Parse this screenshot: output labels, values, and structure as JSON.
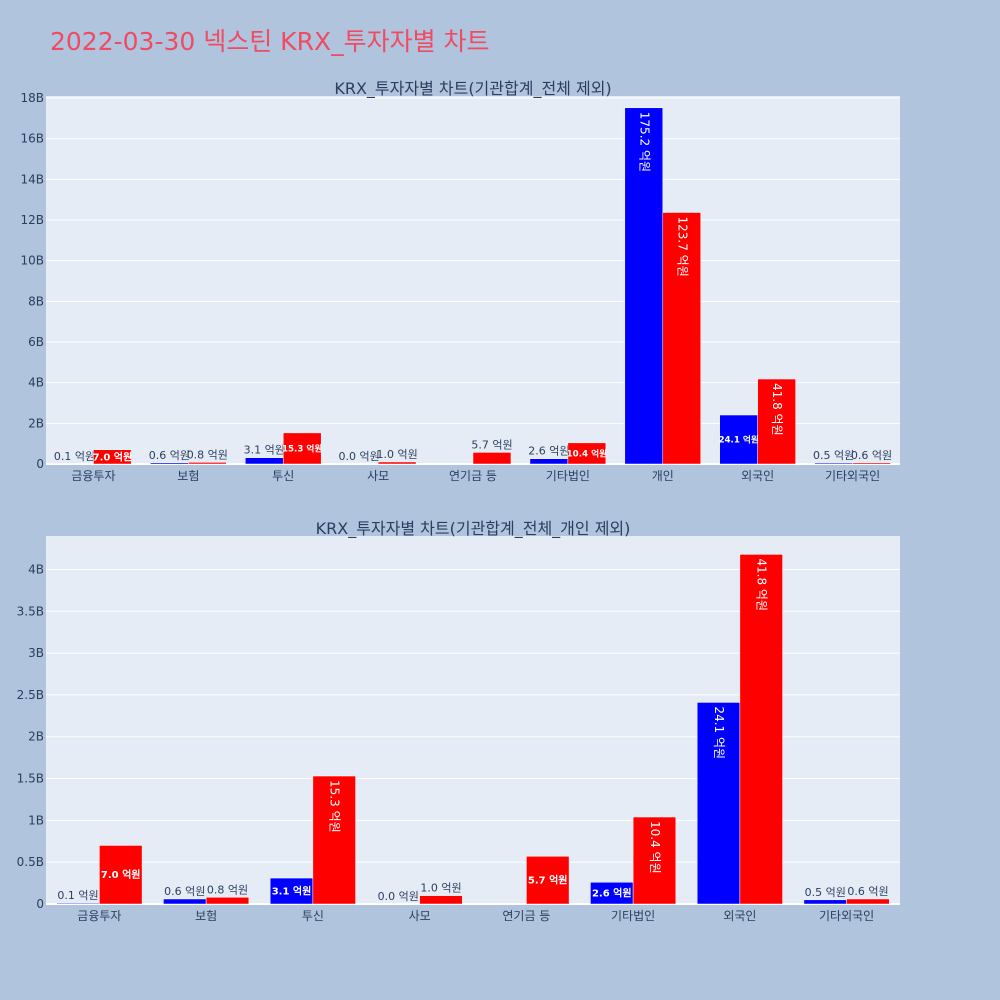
{
  "page_title": "2022-03-30 넥스틴 KRX_투자자별 차트",
  "colors": {
    "series_a": "#0000ff",
    "series_b": "#ff0000",
    "title": "#ef4b63",
    "plot_bg": "#e5ecf6",
    "page_bg": "#b0c4de"
  },
  "chart_data": [
    {
      "type": "bar",
      "title": "KRX_투자자별 차트(기관합계_전체 제외)",
      "categories": [
        "금융투자",
        "보험",
        "투신",
        "사모",
        "연기금 등",
        "기타법인",
        "개인",
        "외국인",
        "기타외국인"
      ],
      "series": [
        {
          "values": [
            10000000,
            60000000,
            310000000,
            0,
            null,
            260000000,
            17520000000,
            2410000000,
            50000000
          ],
          "labels": [
            "0.1 억원",
            "0.6 억원",
            "3.1 억원",
            "0.0 억원",
            "",
            "2.6 억원",
            "175.2 억원",
            "24.1 억원",
            "0.5 억원"
          ]
        },
        {
          "values": [
            700000000,
            80000000,
            1530000000,
            100000000,
            570000000,
            1040000000,
            12370000000,
            4180000000,
            60000000
          ],
          "labels": [
            "7.0 억원",
            "0.8 억원",
            "15.3 억원",
            "1.0 억원",
            "5.7 억원",
            "10.4 억원",
            "123.7 억원",
            "41.8 억원",
            "0.6 억원"
          ]
        }
      ],
      "yticks": [
        0,
        2000000000,
        4000000000,
        6000000000,
        8000000000,
        10000000000,
        12000000000,
        14000000000,
        16000000000,
        18000000000
      ],
      "ytick_labels": [
        "0",
        "2B",
        "4B",
        "6B",
        "8B",
        "10B",
        "12B",
        "14B",
        "16B",
        "18B"
      ],
      "ylim": [
        0,
        18100000000
      ],
      "grid": true
    },
    {
      "type": "bar",
      "title": "KRX_투자자별 차트(기관합계_전체_개인 제외)",
      "categories": [
        "금융투자",
        "보험",
        "투신",
        "사모",
        "연기금 등",
        "기타법인",
        "외국인",
        "기타외국인"
      ],
      "series": [
        {
          "values": [
            10000000,
            60000000,
            310000000,
            0,
            null,
            260000000,
            2410000000,
            50000000
          ],
          "labels": [
            "0.1 억원",
            "0.6 억원",
            "3.1 억원",
            "0.0 억원",
            "",
            "2.6 억원",
            "24.1 억원",
            "0.5 억원"
          ]
        },
        {
          "values": [
            700000000,
            80000000,
            1530000000,
            100000000,
            570000000,
            1040000000,
            4180000000,
            60000000
          ],
          "labels": [
            "7.0 억원",
            "0.8 억원",
            "15.3 억원",
            "1.0 억원",
            "5.7 억원",
            "10.4 억원",
            "41.8 억원",
            "0.6 억원"
          ]
        }
      ],
      "yticks": [
        0,
        500000000,
        1000000000,
        1500000000,
        2000000000,
        2500000000,
        3000000000,
        3500000000,
        4000000000
      ],
      "ytick_labels": [
        "0",
        "0.5B",
        "1B",
        "1.5B",
        "2B",
        "2.5B",
        "3B",
        "3.5B",
        "4B"
      ],
      "ylim": [
        0,
        4400000000
      ],
      "grid": true
    }
  ]
}
